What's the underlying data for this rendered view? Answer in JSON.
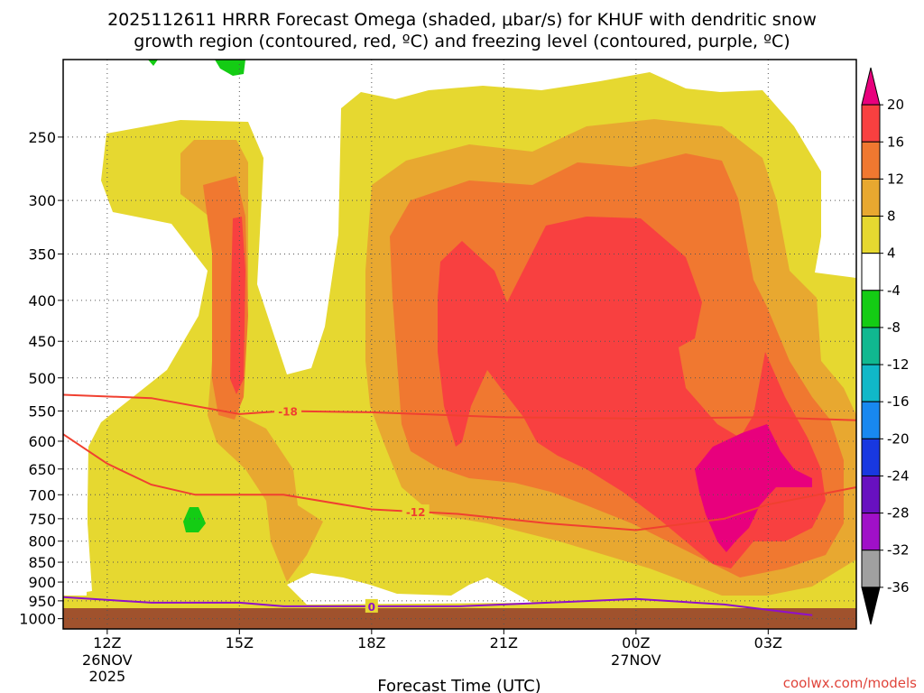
{
  "title_line1": "2025112611 HRRR Forecast Omega (shaded, μbar/s) for KHUF with dendritic snow",
  "title_line2": "growth region (contoured, red, ºC) and freezing level (contoured, purple, ºC)",
  "credit": "coolwx.com/models",
  "chart_data": {
    "type": "heatmap",
    "xlabel": "Forecast Time (UTC)",
    "ylabel": "",
    "x_ticks": [
      {
        "label": "12Z",
        "sub1": "26NOV",
        "sub2": "2025",
        "hours": 0
      },
      {
        "label": "15Z",
        "sub1": "",
        "sub2": "",
        "hours": 3
      },
      {
        "label": "18Z",
        "sub1": "",
        "sub2": "",
        "hours": 6
      },
      {
        "label": "21Z",
        "sub1": "",
        "sub2": "",
        "hours": 9
      },
      {
        "label": "00Z",
        "sub1": "27NOV",
        "sub2": "",
        "hours": 12
      },
      {
        "label": "03Z",
        "sub1": "",
        "sub2": "",
        "hours": 15
      }
    ],
    "xlim_hours": [
      -1,
      17
    ],
    "y_ticks": [
      250,
      300,
      350,
      400,
      450,
      500,
      550,
      600,
      650,
      700,
      750,
      800,
      850,
      900,
      950,
      1000
    ],
    "ylim_hpa": [
      200,
      1030
    ],
    "yscale": "log",
    "grid": true,
    "colorbar": {
      "labels": [
        "20",
        "16",
        "12",
        "8",
        "4",
        "-4",
        "-8",
        "-12",
        "-16",
        "-20",
        "-24",
        "-28",
        "-32",
        "-36"
      ],
      "colors": [
        "#e8007d",
        "#f84040",
        "#f07830",
        "#e8a830",
        "#e6d830",
        "#ffffff",
        "#14cc14",
        "#10b890",
        "#10b8c8",
        "#1888f0",
        "#1838e0",
        "#6810c0",
        "#a010c8",
        "#a0a0a0",
        "#000000"
      ]
    },
    "omega_levels": [
      {
        "min": 4,
        "color": "#e6d830"
      },
      {
        "min": 8,
        "color": "#e8a830"
      },
      {
        "min": 12,
        "color": "#f07830"
      },
      {
        "min": 16,
        "color": "#f84040"
      },
      {
        "min": 20,
        "color": "#e8007d"
      },
      {
        "max": -4,
        "color": "#14cc14"
      }
    ],
    "contours": [
      {
        "name": "-18",
        "color": "#f04030",
        "label_x_hours": 4.1,
        "points": [
          [
            -1,
            525
          ],
          [
            1,
            530
          ],
          [
            3,
            555
          ],
          [
            4,
            550
          ],
          [
            6,
            552
          ],
          [
            9,
            560
          ],
          [
            12,
            562
          ],
          [
            15,
            560
          ],
          [
            17,
            565
          ]
        ]
      },
      {
        "name": "-12",
        "color": "#f04030",
        "label_x_hours": 7.0,
        "points": [
          [
            -1,
            588
          ],
          [
            0,
            640
          ],
          [
            1,
            680
          ],
          [
            2,
            700
          ],
          [
            4,
            700
          ],
          [
            6,
            730
          ],
          [
            8,
            740
          ],
          [
            10,
            760
          ],
          [
            12,
            775
          ],
          [
            14,
            750
          ],
          [
            15,
            720
          ],
          [
            17,
            685
          ]
        ]
      },
      {
        "name": "0",
        "color": "#9010c8",
        "label_x_hours": 6.0,
        "points": [
          [
            -1,
            940
          ],
          [
            1,
            955
          ],
          [
            3,
            955
          ],
          [
            4,
            965
          ],
          [
            6,
            965
          ],
          [
            8,
            965
          ],
          [
            10,
            955
          ],
          [
            12,
            945
          ],
          [
            14,
            960
          ],
          [
            16,
            990
          ]
        ]
      }
    ]
  }
}
